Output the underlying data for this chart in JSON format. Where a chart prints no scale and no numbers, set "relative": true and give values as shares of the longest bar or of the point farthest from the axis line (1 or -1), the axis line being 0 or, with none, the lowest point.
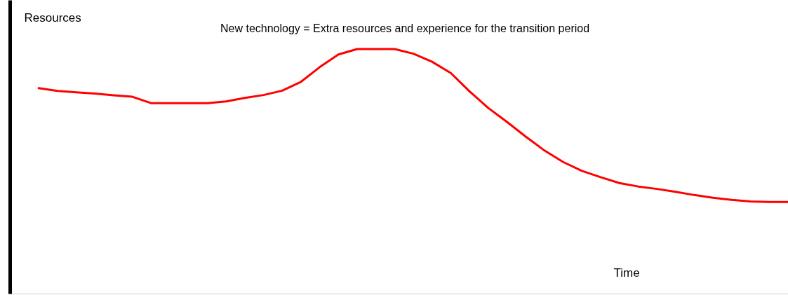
{
  "chart_data": {
    "type": "line",
    "relative": true,
    "title": "New  technology = Extra resources and experience for the transition period",
    "xlabel": "Time",
    "ylabel": "Resources",
    "grid": false,
    "marker": "none",
    "line_style": "solid",
    "categories": [
      null,
      null,
      null,
      null,
      null,
      null,
      null,
      null,
      null,
      null,
      null,
      null,
      null,
      null,
      null,
      null,
      null,
      null,
      null,
      null,
      null,
      null,
      null,
      null,
      null,
      null,
      null,
      null,
      null,
      null,
      null,
      null,
      null,
      null,
      null,
      null,
      null,
      null,
      null,
      null,
      null
    ],
    "series": [
      {
        "color": "#ff0000",
        "values": [
          0.84,
          0.829,
          0.823,
          0.818,
          0.811,
          0.805,
          0.779,
          0.779,
          0.779,
          0.779,
          0.786,
          0.8,
          0.812,
          0.83,
          0.866,
          0.926,
          0.978,
          1,
          1,
          1,
          0.981,
          0.948,
          0.902,
          0.827,
          0.759,
          0.702,
          0.642,
          0.585,
          0.538,
          0.502,
          0.476,
          0.452,
          0.438,
          0.428,
          0.416,
          0.403,
          0.392,
          0.383,
          0.377,
          0.375,
          0.375
        ]
      }
    ]
  }
}
